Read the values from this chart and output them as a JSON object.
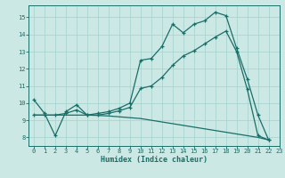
{
  "xlabel": "Humidex (Indice chaleur)",
  "bg_color": "#cce8e5",
  "grid_color": "#aad4d0",
  "line_color": "#1a6e68",
  "xlim": [
    -0.5,
    23
  ],
  "ylim": [
    7.5,
    15.7
  ],
  "xticks": [
    0,
    1,
    2,
    3,
    4,
    5,
    6,
    7,
    8,
    9,
    10,
    11,
    12,
    13,
    14,
    15,
    16,
    17,
    18,
    19,
    20,
    21,
    22,
    23
  ],
  "yticks": [
    8,
    9,
    10,
    11,
    12,
    13,
    14,
    15
  ],
  "line1_x": [
    0,
    1,
    2,
    3,
    4,
    5,
    6,
    7,
    8,
    9,
    10,
    11,
    12,
    13,
    14,
    15,
    16,
    17,
    18,
    19,
    20,
    21,
    22
  ],
  "line1_y": [
    10.2,
    9.4,
    8.1,
    9.5,
    9.9,
    9.3,
    9.4,
    9.5,
    9.7,
    10.0,
    12.5,
    12.6,
    13.3,
    14.6,
    14.1,
    14.6,
    14.8,
    15.3,
    15.1,
    13.2,
    11.4,
    9.3,
    7.85
  ],
  "line2_x": [
    0,
    1,
    2,
    3,
    4,
    5,
    6,
    7,
    8,
    9,
    10,
    11,
    12,
    13,
    14,
    15,
    16,
    17,
    18,
    19,
    20,
    21,
    22
  ],
  "line2_y": [
    9.3,
    9.3,
    9.3,
    9.4,
    9.6,
    9.3,
    9.3,
    9.4,
    9.55,
    9.75,
    10.85,
    11.0,
    11.5,
    12.2,
    12.75,
    13.05,
    13.45,
    13.85,
    14.2,
    13.0,
    10.8,
    8.1,
    7.85
  ],
  "line3_x": [
    0,
    1,
    2,
    3,
    4,
    5,
    6,
    7,
    8,
    9,
    10,
    11,
    12,
    13,
    14,
    15,
    16,
    17,
    18,
    19,
    20,
    21,
    22
  ],
  "line3_y": [
    9.3,
    9.3,
    9.3,
    9.3,
    9.3,
    9.3,
    9.28,
    9.25,
    9.2,
    9.15,
    9.1,
    9.0,
    8.9,
    8.8,
    8.7,
    8.6,
    8.5,
    8.4,
    8.3,
    8.2,
    8.1,
    8.0,
    7.85
  ]
}
